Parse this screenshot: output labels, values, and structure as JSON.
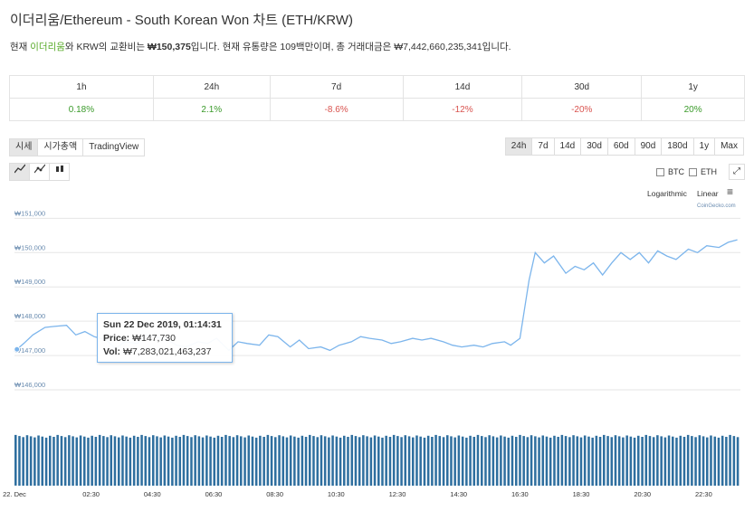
{
  "header": {
    "title": "이더리움/Ethereum - South Korean Won 차트 (ETH/KRW)",
    "desc_prefix": "현재 ",
    "desc_coin": "이더리움",
    "desc_mid": "와 KRW의 교환비는 ",
    "desc_price": "₩150,375",
    "desc_rest": "입니다. 현재 유통량은 109백만이며, 총 거래대금은 ₩7,442,660,235,341입니다."
  },
  "performance": {
    "periods": [
      "1h",
      "24h",
      "7d",
      "14d",
      "30d",
      "1y"
    ],
    "changes": [
      "0.18%",
      "2.1%",
      "-8.6%",
      "-12%",
      "-20%",
      "20%"
    ],
    "colors": {
      "positive": "#3a9a2a",
      "negative": "#d9534f"
    }
  },
  "tabs": [
    "시세",
    "시가총액",
    "TradingView"
  ],
  "ranges": [
    "24h",
    "7d",
    "14d",
    "30d",
    "60d",
    "90d",
    "180d",
    "1y",
    "Max"
  ],
  "chart_types": [
    "line-chart-icon",
    "line-markers-icon",
    "candlestick-icon"
  ],
  "compare": [
    "BTC",
    "ETH"
  ],
  "scale_options": [
    "Logarithmic",
    "Linear"
  ],
  "credit": "CoinGecko.com",
  "tooltip": {
    "date": "Sun 22 Dec 2019, 01:14:31",
    "price_label": "Price:",
    "price": "₩147,730",
    "vol_label": "Vol:",
    "vol": "₩7,283,021,463,237"
  },
  "chart_data": {
    "type": "line",
    "title": "",
    "y_ticks": [
      151000,
      150000,
      149000,
      148000,
      147000,
      146000
    ],
    "y_tick_labels": [
      "₩151,000",
      "₩150,000",
      "₩149,000",
      "₩148,000",
      "₩147,000",
      "₩146,000"
    ],
    "ylim": [
      145500,
      151300
    ],
    "x_tick_labels": [
      "22. Dec",
      "02:30",
      "04:30",
      "06:30",
      "08:30",
      "10:30",
      "12:30",
      "14:30",
      "16:30",
      "18:30",
      "20:30",
      "22:30"
    ],
    "x_tick_hours": [
      0,
      2.5,
      4.5,
      6.5,
      8.5,
      10.5,
      12.5,
      14.5,
      16.5,
      18.5,
      20.5,
      22.5
    ],
    "xlim_hours": [
      0,
      23.7
    ],
    "price_series": {
      "name": "Price",
      "color": "#7cb5ec",
      "points": [
        [
          0,
          147120
        ],
        [
          0.3,
          147350
        ],
        [
          0.6,
          147600
        ],
        [
          1.0,
          147820
        ],
        [
          1.3,
          147850
        ],
        [
          1.7,
          147880
        ],
        [
          2.0,
          147600
        ],
        [
          2.3,
          147700
        ],
        [
          2.6,
          147550
        ],
        [
          3.0,
          147450
        ],
        [
          3.3,
          147200
        ],
        [
          3.6,
          147400
        ],
        [
          4.0,
          147350
        ],
        [
          4.3,
          147600
        ],
        [
          4.6,
          147550
        ],
        [
          5.0,
          147450
        ],
        [
          5.3,
          147300
        ],
        [
          5.6,
          147250
        ],
        [
          6.0,
          147400
        ],
        [
          6.3,
          147350
        ],
        [
          6.6,
          147500
        ],
        [
          7.0,
          147150
        ],
        [
          7.3,
          147400
        ],
        [
          7.6,
          147350
        ],
        [
          8.0,
          147300
        ],
        [
          8.3,
          147600
        ],
        [
          8.6,
          147550
        ],
        [
          9.0,
          147250
        ],
        [
          9.3,
          147450
        ],
        [
          9.6,
          147200
        ],
        [
          10.0,
          147250
        ],
        [
          10.3,
          147150
        ],
        [
          10.6,
          147300
        ],
        [
          11.0,
          147400
        ],
        [
          11.3,
          147550
        ],
        [
          11.6,
          147500
        ],
        [
          12.0,
          147450
        ],
        [
          12.3,
          147350
        ],
        [
          12.6,
          147400
        ],
        [
          13.0,
          147500
        ],
        [
          13.3,
          147450
        ],
        [
          13.6,
          147500
        ],
        [
          14.0,
          147400
        ],
        [
          14.3,
          147300
        ],
        [
          14.6,
          147250
        ],
        [
          15.0,
          147300
        ],
        [
          15.3,
          147250
        ],
        [
          15.6,
          147350
        ],
        [
          16.0,
          147400
        ],
        [
          16.2,
          147300
        ],
        [
          16.5,
          147500
        ],
        [
          16.8,
          149200
        ],
        [
          17.0,
          150000
        ],
        [
          17.3,
          149700
        ],
        [
          17.6,
          149900
        ],
        [
          18.0,
          149400
        ],
        [
          18.3,
          149600
        ],
        [
          18.6,
          149500
        ],
        [
          18.9,
          149700
        ],
        [
          19.2,
          149350
        ],
        [
          19.5,
          149700
        ],
        [
          19.8,
          150000
        ],
        [
          20.1,
          149800
        ],
        [
          20.4,
          150000
        ],
        [
          20.7,
          149700
        ],
        [
          21.0,
          150050
        ],
        [
          21.3,
          149900
        ],
        [
          21.6,
          149800
        ],
        [
          22.0,
          150100
        ],
        [
          22.3,
          150000
        ],
        [
          22.6,
          150200
        ],
        [
          23.0,
          150150
        ],
        [
          23.3,
          150300
        ],
        [
          23.6,
          150375
        ]
      ]
    },
    "volume_series": {
      "name": "Vol",
      "color": "#2f6f9f",
      "level_fraction": 0.95
    },
    "grid": true,
    "legend": "none"
  }
}
